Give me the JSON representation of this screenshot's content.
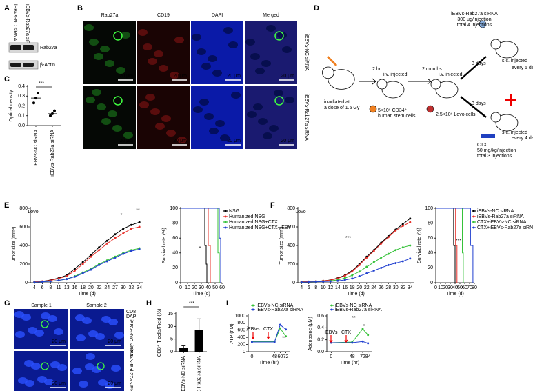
{
  "panel_labels": [
    "A",
    "B",
    "C",
    "D",
    "E",
    "F",
    "G",
    "H",
    "I"
  ],
  "blot": {
    "columns": [
      "iEBVs-NC siRNA",
      "iEBVs-Rab27a siRNA"
    ],
    "rows": [
      "Rab27a",
      "β-Actin"
    ]
  },
  "microscopy_b": {
    "columns": [
      "Rab27a",
      "CD19",
      "DAPI",
      "Merged"
    ],
    "rows": [
      "iEBVs-NC siRNA",
      "iEBVs-Rab27a siRNA"
    ],
    "scale": "20 μm"
  },
  "schematic": {
    "texts": [
      "iEBVs-Rab27a siRNA",
      "300 μg/injection",
      "total 4 injections",
      "2 hr",
      "2 months",
      "3 days",
      "3 days",
      "i.v. injected",
      "i.v. injected",
      "s.c. injected",
      "every 5 days",
      "s.c. injected",
      "every 4 days",
      "irradiated at",
      "a dose of 1.5 Gy",
      "5×10⁵ CD34⁺",
      "human stem cells",
      "2.5×10⁶ Lovo cells",
      "CTX",
      "50 mg/kg/injection",
      "total 3 injections"
    ]
  },
  "microscopy_g": {
    "columns": [
      "Sample 1",
      "Sample 2"
    ],
    "rows": [
      "iEBVs-NC siRNA",
      "iEBVs-Rab27a siRNA"
    ],
    "stains": [
      "CD8",
      "DAPI"
    ],
    "scale": "20 μm"
  },
  "charts": [
    {
      "type": "scatter",
      "ylabel": "Optical density",
      "categories": [
        "iEBVs-NC siRNA",
        "iEBVs-Rab27a siRNA"
      ],
      "values": [
        [
          0.23,
          0.28,
          0.33
        ],
        [
          0.1,
          0.12,
          0.15
        ]
      ],
      "means": [
        0.28,
        0.12
      ],
      "color": "#000000",
      "ylim": [
        0,
        0.4
      ],
      "yticks": [
        {
          "value": 0,
          "label": "0.0"
        },
        0.1,
        0.2,
        0.3,
        0.4
      ],
      "annotations": [
        "***"
      ]
    },
    {
      "type": "line",
      "xlabel": "Time (d)",
      "ylabel": "Tumor size (mm³)",
      "categories": [
        "4",
        "6",
        "8",
        "11",
        "13",
        "16",
        "18",
        "20",
        "22",
        "24",
        "27",
        "30",
        "32",
        "34"
      ],
      "series": [
        {
          "color": "#000000",
          "values": [
            10,
            15,
            30,
            50,
            80,
            150,
            220,
            300,
            380,
            450,
            520,
            580,
            620,
            650
          ]
        },
        {
          "color": "#e8302a",
          "values": [
            10,
            15,
            25,
            45,
            70,
            130,
            200,
            280,
            350,
            420,
            480,
            530,
            580,
            600
          ]
        },
        {
          "color": "#36c23a",
          "values": [
            5,
            10,
            15,
            25,
            40,
            70,
            110,
            150,
            200,
            240,
            280,
            320,
            350,
            370
          ]
        },
        {
          "color": "#2140d0",
          "values": [
            5,
            10,
            15,
            25,
            40,
            65,
            100,
            140,
            190,
            230,
            270,
            310,
            340,
            360
          ]
        }
      ],
      "ylim": [
        0,
        800
      ],
      "yticks": [
        0,
        200,
        400,
        600,
        800
      ],
      "annotations": [
        "Lovo",
        "*",
        "**"
      ]
    },
    {
      "type": "step",
      "xlabel": "Time (d)",
      "ylabel": "Survival rate (%)",
      "legend": "right",
      "series": [
        {
          "name": "NSG",
          "color": "#000000",
          "x": [
            0,
            35,
            37,
            38
          ],
          "values": [
            100,
            50,
            25,
            0
          ]
        },
        {
          "name": "Humanized NSG",
          "color": "#e8302a",
          "x": [
            0,
            40,
            43
          ],
          "values": [
            100,
            50,
            0
          ]
        },
        {
          "name": "Humanized NSG+CTX",
          "color": "#36c23a",
          "x": [
            0,
            54,
            56
          ],
          "values": [
            100,
            40,
            0
          ]
        },
        {
          "name": "Humanized NSG+CTX+iEBV",
          "color": "#2140d0",
          "x": [
            0,
            56,
            58
          ],
          "values": [
            100,
            60,
            0
          ]
        }
      ],
      "xlim": [
        0,
        60
      ],
      "xticks": [
        0,
        10,
        20,
        30,
        40,
        50,
        60
      ],
      "ylim": [
        0,
        100
      ],
      "yticks": [
        0,
        20,
        40,
        60,
        80,
        100
      ],
      "annotations": [
        "*"
      ]
    },
    {
      "type": "line",
      "xlabel": "Time (d)",
      "ylabel": "Tumor size (mm³)",
      "categories": [
        "4",
        "6",
        "8",
        "10",
        "12",
        "14",
        "16",
        "18",
        "20",
        "22",
        "24",
        "26",
        "28",
        "30",
        "32",
        "34"
      ],
      "series": [
        {
          "color": "#000000",
          "values": [
            10,
            12,
            15,
            20,
            30,
            50,
            80,
            130,
            200,
            280,
            350,
            430,
            500,
            570,
            630,
            690
          ]
        },
        {
          "color": "#e8302a",
          "values": [
            10,
            12,
            15,
            20,
            28,
            45,
            75,
            120,
            190,
            270,
            340,
            420,
            490,
            560,
            610,
            650
          ]
        },
        {
          "color": "#36c23a",
          "values": [
            5,
            8,
            10,
            15,
            20,
            30,
            50,
            80,
            120,
            170,
            220,
            270,
            310,
            350,
            380,
            400
          ]
        },
        {
          "color": "#2140d0",
          "values": [
            5,
            8,
            10,
            12,
            15,
            20,
            30,
            45,
            70,
            100,
            130,
            160,
            190,
            210,
            230,
            260
          ]
        }
      ],
      "ylim": [
        0,
        800
      ],
      "yticks": [
        0,
        200,
        400,
        600,
        800
      ],
      "annotations": [
        "Lovo",
        "***"
      ]
    },
    {
      "type": "step",
      "xlabel": "Time (d)",
      "ylabel": "Survival rate (%)",
      "legend": "right",
      "series": [
        {
          "name": "iEBVs-NC siRNA",
          "color": "#000000",
          "x": [
            0,
            37,
            40
          ],
          "values": [
            100,
            50,
            0
          ]
        },
        {
          "name": "iEBVs-Rab27a siRNA",
          "color": "#e8302a",
          "x": [
            0,
            41,
            44
          ],
          "values": [
            100,
            50,
            0
          ]
        },
        {
          "name": "CTX+iEBVs-NC siRNA",
          "color": "#36c23a",
          "x": [
            0,
            55,
            57
          ],
          "values": [
            100,
            40,
            0
          ]
        },
        {
          "name": "CTX+iEBVs-Rab27a siRNA",
          "color": "#2140d0",
          "x": [
            0,
            72,
            77
          ],
          "values": [
            100,
            50,
            0
          ]
        }
      ],
      "xlim": [
        0,
        80
      ],
      "xticks": [
        0,
        10,
        20,
        30,
        40,
        50,
        60,
        70,
        80
      ],
      "ylim": [
        0,
        100
      ],
      "yticks": [
        0,
        20,
        40,
        60,
        80,
        100
      ],
      "annotations": [
        "***"
      ]
    },
    {
      "type": "bar",
      "ylabel": "CD8⁺ T cells/Field (%)",
      "categories": [
        "iEBVs-NC siRNA",
        "iEBVs-Rab27a siRNA"
      ],
      "values": [
        1.5,
        8.5
      ],
      "errors": [
        0.8,
        4.5
      ],
      "color": "#000000",
      "ylim": [
        0,
        15
      ],
      "yticks": [
        0,
        5,
        10,
        15
      ],
      "annotations": [
        "***"
      ]
    },
    {
      "type": "line",
      "xlabel": "Time (hr)",
      "ylabel": "ATP (nM)",
      "legend": "top",
      "x": [
        0,
        48,
        60,
        72
      ],
      "series": [
        {
          "name": "iEBVs-NC siRNA",
          "color": "#36c23a",
          "values": [
            280,
            280,
            650,
            430
          ]
        },
        {
          "name": "iEBVs-Rab27a siRNA",
          "color": "#2140d0",
          "values": [
            270,
            270,
            750,
            620
          ]
        }
      ],
      "xlim": [
        -8,
        80
      ],
      "xticks": [
        0,
        48,
        60,
        72
      ],
      "ylim": [
        0,
        1000
      ],
      "yticks": [
        0,
        200,
        400,
        600,
        800,
        1000
      ],
      "annotations": [
        "iEBVs",
        "CTX",
        "**"
      ]
    },
    {
      "type": "line",
      "xlabel": "Time (hr)",
      "ylabel": "Adenosine (μM)",
      "legend": "top",
      "x": [
        0,
        48,
        72,
        84
      ],
      "series": [
        {
          "name": "iEBVs-NC siRNA",
          "color": "#36c23a",
          "values": [
            0.15,
            0.16,
            0.38,
            0.28
          ]
        },
        {
          "name": "iEBVs-Rab27a siRNA",
          "color": "#2140d0",
          "values": [
            0.15,
            0.15,
            0.17,
            0.14
          ]
        }
      ],
      "xlim": [
        -10,
        94
      ],
      "xticks": [
        0,
        48,
        72,
        84
      ],
      "ylim": [
        0,
        0.6
      ],
      "yticks": [
        {
          "value": 0,
          "label": "0.0"
        },
        0.2,
        0.4,
        0.6
      ],
      "annotations": [
        "iEBVs",
        "CTX",
        "**",
        "*"
      ]
    }
  ]
}
